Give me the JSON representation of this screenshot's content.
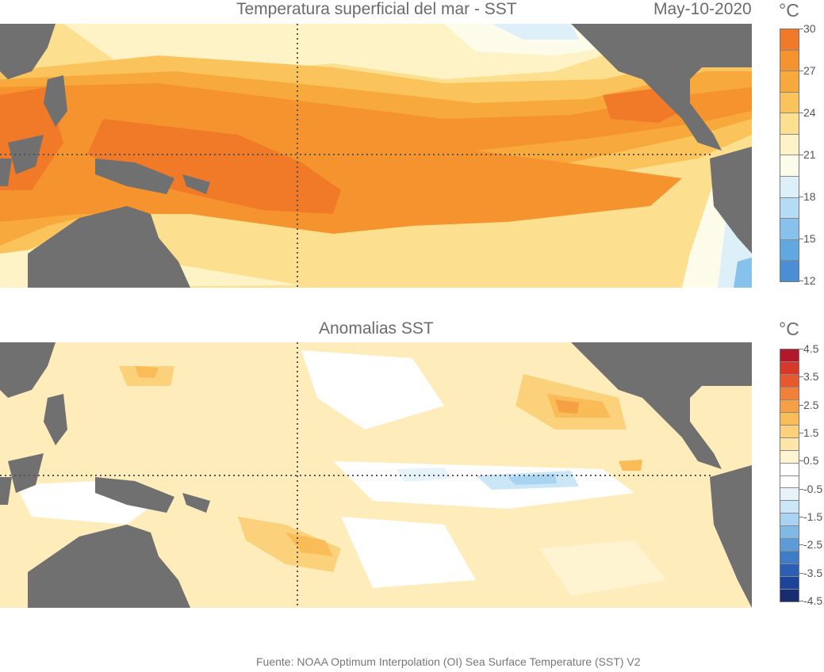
{
  "top_panel": {
    "title": "Temperatura superficial del mar - SST",
    "date": "May-10-2020",
    "unit": "°C",
    "colorbar": {
      "ticks": [
        "30",
        "27",
        "24",
        "21",
        "18",
        "15",
        "12"
      ],
      "colors_top_to_bottom": [
        "#f07a28",
        "#f5932f",
        "#f8a93c",
        "#fbc35c",
        "#fde08f",
        "#fef3c6",
        "#fdfbe9",
        "#ddeff9",
        "#b4dcf4",
        "#86c2ec",
        "#5fa8e0",
        "#4a8fd4"
      ]
    }
  },
  "bottom_panel": {
    "title": "Anomalias SST",
    "unit": "°C",
    "colorbar": {
      "ticks": [
        "4.5",
        "3.5",
        "2.5",
        "1.5",
        "0.5",
        "-0.5",
        "-1.5",
        "-2.5",
        "-3.5",
        "-4.5"
      ],
      "colors_top_to_bottom": [
        "#b2182b",
        "#d6382a",
        "#e8582f",
        "#f2803a",
        "#f6a045",
        "#f9bc57",
        "#fbd27b",
        "#fde6a7",
        "#fef4d2",
        "#ffffff",
        "#ffffff",
        "#e7f3fb",
        "#cbe6f7",
        "#a8d3f1",
        "#7fb9e6",
        "#5a9bd8",
        "#3f7cc8",
        "#2a5fb4",
        "#1c449b",
        "#182c70"
      ]
    }
  },
  "land_color": "#707070",
  "source": "Fuente: NOAA Optimum Interpolation (OI) Sea Surface Temperature (SST) V2"
}
